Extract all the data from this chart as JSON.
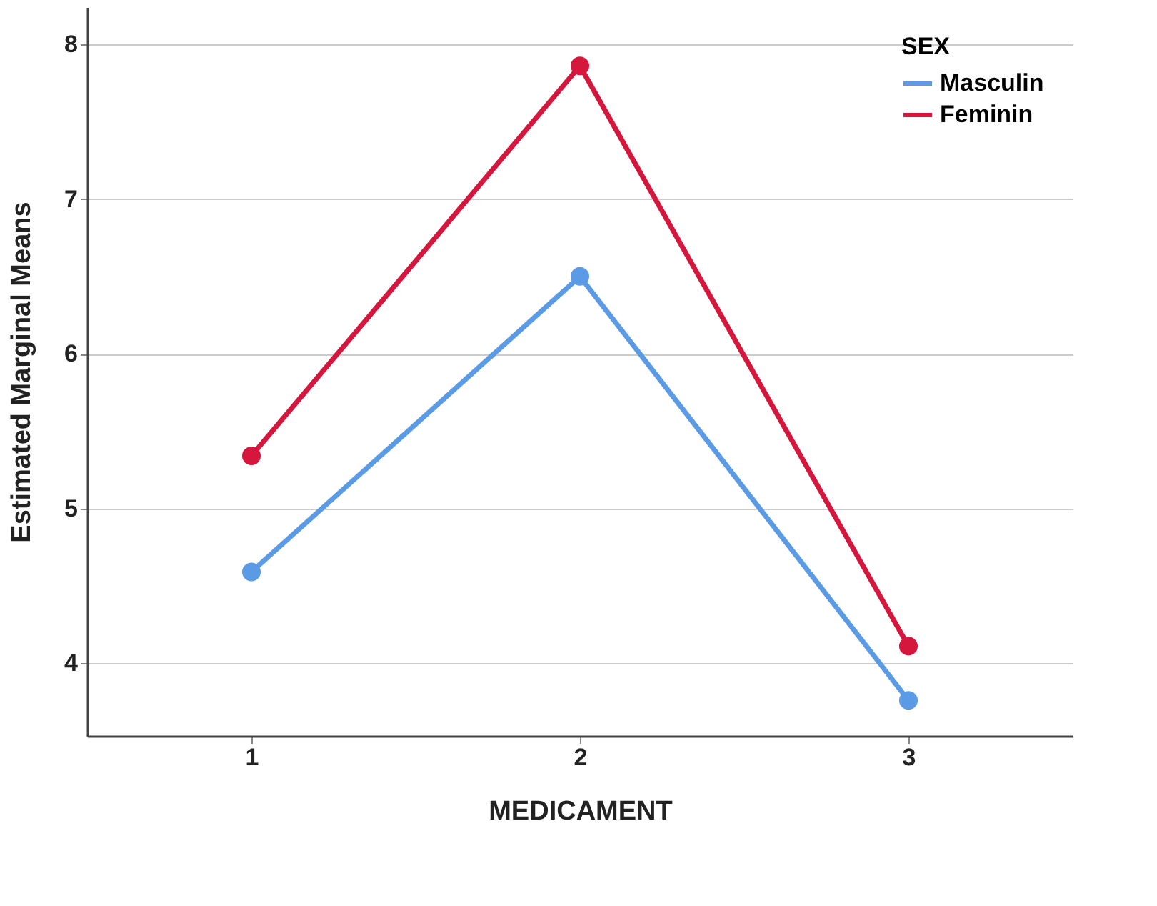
{
  "chart_data": {
    "type": "line",
    "xlabel": "MEDICAMENT",
    "ylabel": "Estimated Marginal Means",
    "legend_title": "SEX",
    "categories": [
      "1",
      "2",
      "3"
    ],
    "series": [
      {
        "name": "Masculin",
        "color": "#5b9be6",
        "values": [
          4.59,
          6.5,
          3.76
        ]
      },
      {
        "name": "Feminin",
        "color": "#d6173d",
        "values": [
          5.34,
          7.86,
          4.11
        ]
      }
    ],
    "ylim": [
      3.53,
      8.24
    ],
    "yticks": [
      4,
      5,
      6,
      7,
      8
    ],
    "grid": "y",
    "legend": "top right",
    "marker": "circle",
    "line_style": "solid"
  }
}
